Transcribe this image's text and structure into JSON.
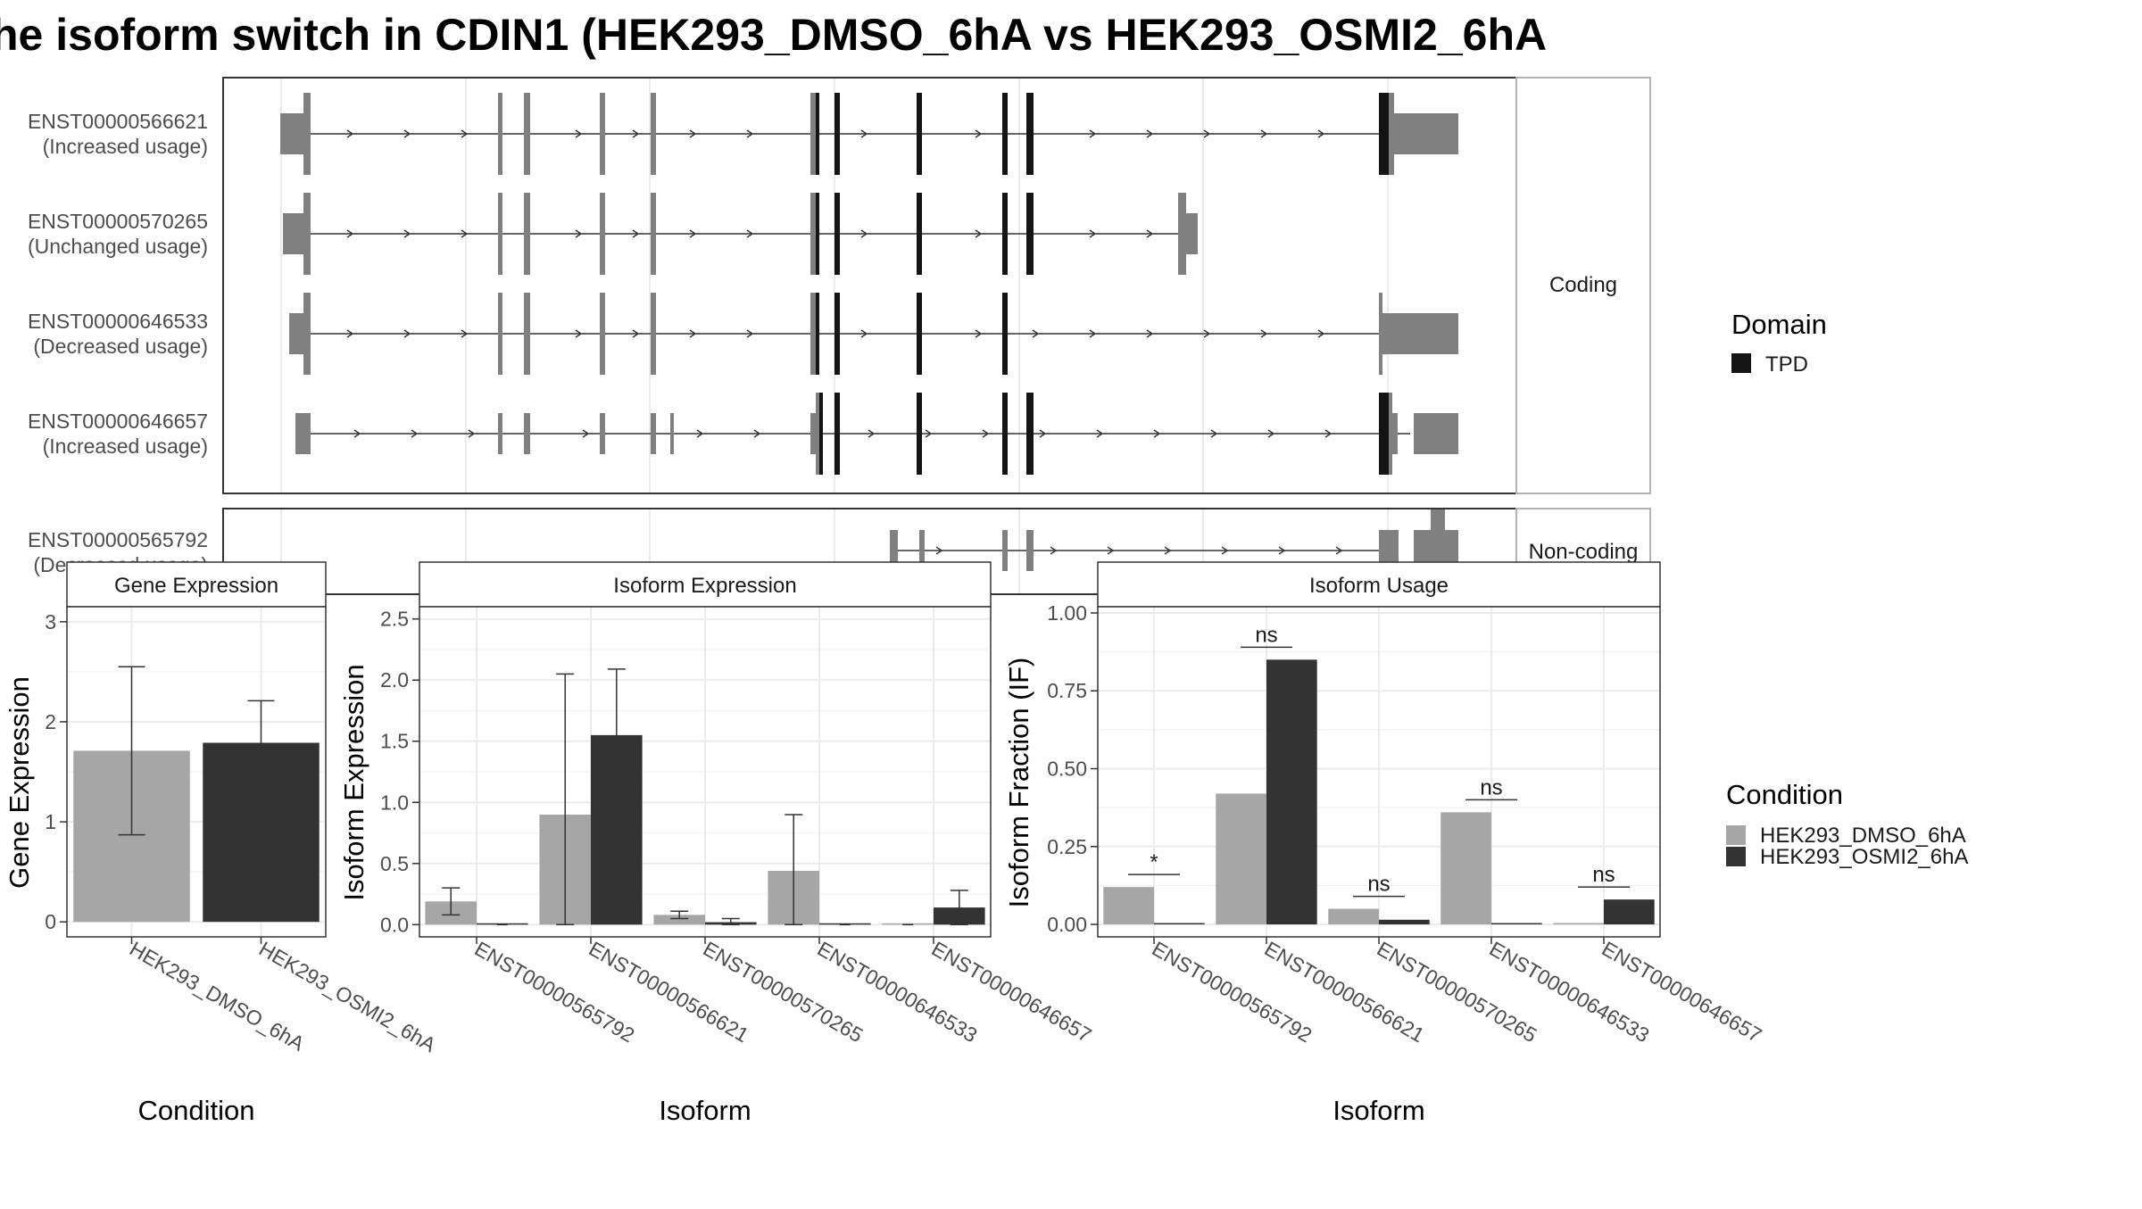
{
  "title": "he isoform switch in CDIN1 (HEK293_DMSO_6hA vs HEK293_OSMI2_6hA",
  "colors": {
    "utr": "#808080",
    "cds": "#808080",
    "domain": "#141414",
    "intron": "#333333",
    "dmso": "#a6a6a6",
    "osmi2": "#333333",
    "panel_border": "#333333",
    "strip_border": "#b3b3b3",
    "grid": "#ebebeb"
  },
  "structure": {
    "coding_label": "Coding",
    "noncoding_label": "Non-coding",
    "transcripts": [
      {
        "id": "ENST00000566621",
        "usage": "(Increased usage)",
        "group": "coding"
      },
      {
        "id": "ENST00000570265",
        "usage": "(Unchanged usage)",
        "group": "coding"
      },
      {
        "id": "ENST00000646533",
        "usage": "(Decreased usage)",
        "group": "coding"
      },
      {
        "id": "ENST00000646657",
        "usage": "(Increased usage)",
        "group": "coding"
      },
      {
        "id": "ENST00000565792",
        "usage": "(Decreased usage)",
        "group": "noncoding"
      }
    ]
  },
  "legend_domain": {
    "title": "Domain",
    "items": [
      {
        "label": "TPD",
        "color": "#141414"
      }
    ]
  },
  "legend_condition": {
    "title": "Condition",
    "items": [
      {
        "label": "HEK293_DMSO_6hA",
        "color": "#a6a6a6"
      },
      {
        "label": "HEK293_OSMI2_6hA",
        "color": "#333333"
      }
    ]
  },
  "chart_data": [
    {
      "type": "bar",
      "title": "Gene Expression",
      "xlabel": "Condition",
      "ylabel": "Gene Expression",
      "categories": [
        "HEK293_DMSO_6hA",
        "HEK293_OSMI2_6hA"
      ],
      "values": [
        1.71,
        1.79
      ],
      "error_low": [
        0.87,
        1.37
      ],
      "error_high": [
        2.55,
        2.21
      ],
      "ylim": [
        -0.15,
        3.15
      ],
      "yticks": [
        0,
        1,
        2,
        3
      ],
      "yticklabels": [
        "0",
        "1",
        "2",
        "3"
      ]
    },
    {
      "type": "bar",
      "title": "Isoform Expression",
      "xlabel": "Isoform",
      "ylabel": "Isoform Expression",
      "categories": [
        "ENST00000565792",
        "ENST00000566621",
        "ENST00000570265",
        "ENST00000646533",
        "ENST00000646657"
      ],
      "series": [
        {
          "name": "HEK293_DMSO_6hA",
          "values": [
            0.19,
            0.9,
            0.08,
            0.44,
            0.0
          ],
          "error_low": [
            0.08,
            0.0,
            0.05,
            0.0,
            null
          ],
          "error_high": [
            0.3,
            2.05,
            0.11,
            0.9,
            null
          ]
        },
        {
          "name": "HEK293_OSMI2_6hA",
          "values": [
            0.0,
            1.55,
            0.02,
            0.0,
            0.14
          ],
          "error_low": [
            null,
            1.02,
            0.0,
            null,
            0.0
          ],
          "error_high": [
            null,
            2.09,
            0.05,
            null,
            0.28
          ]
        }
      ],
      "ylim": [
        -0.1,
        2.6
      ],
      "yticks": [
        0,
        0.5,
        1,
        1.5,
        2,
        2.5
      ],
      "yticklabels": [
        "0.0",
        "0.5",
        "1.0",
        "1.5",
        "2.0",
        "2.5"
      ]
    },
    {
      "type": "bar",
      "title": "Isoform Usage",
      "xlabel": "Isoform",
      "ylabel": "Isoform Fraction (IF)",
      "categories": [
        "ENST00000565792",
        "ENST00000566621",
        "ENST00000570265",
        "ENST00000646533",
        "ENST00000646657"
      ],
      "series": [
        {
          "name": "HEK293_DMSO_6hA",
          "values": [
            0.12,
            0.42,
            0.05,
            0.36,
            0.0
          ]
        },
        {
          "name": "HEK293_OSMI2_6hA",
          "values": [
            0.0,
            0.85,
            0.015,
            0.0,
            0.08
          ]
        }
      ],
      "significance": [
        "*",
        "ns",
        "ns",
        "ns",
        "ns"
      ],
      "ylim": [
        -0.04,
        1.02
      ],
      "yticks": [
        0,
        0.25,
        0.5,
        0.75,
        1
      ],
      "yticklabels": [
        "0.00",
        "0.25",
        "0.50",
        "0.75",
        "1.00"
      ]
    }
  ]
}
